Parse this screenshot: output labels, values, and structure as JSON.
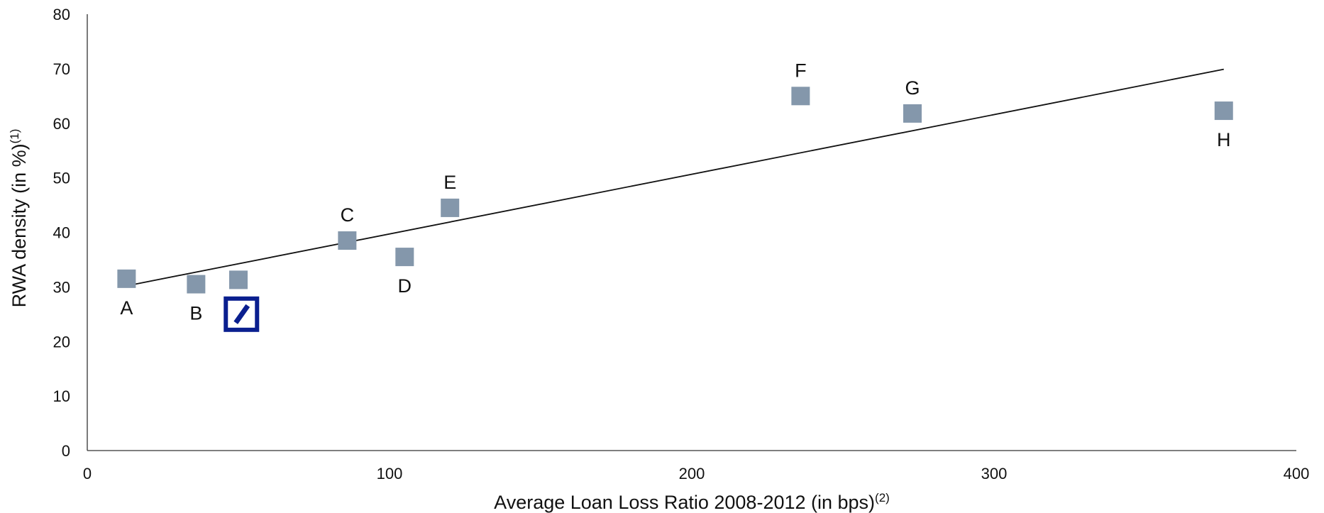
{
  "chart_data": {
    "type": "scatter",
    "title": "",
    "xlabel": "Average Loan Loss Ratio 2008-2012 (in bps)",
    "xlabel_sup": "(2)",
    "ylabel": "RWA density (in %)",
    "ylabel_sup": "(1)",
    "xlim": [
      0,
      400
    ],
    "ylim": [
      0,
      80
    ],
    "xticks": [
      "0",
      "100",
      "200",
      "300",
      "400"
    ],
    "yticks": [
      "0",
      "10",
      "20",
      "30",
      "40",
      "50",
      "60",
      "70",
      "80"
    ],
    "grid": false,
    "series": [
      {
        "points": [
          {
            "label": "A",
            "x": 13,
            "y": 31.5,
            "label_pos": "below"
          },
          {
            "label": "B",
            "x": 36,
            "y": 30.5,
            "label_pos": "below"
          },
          {
            "label": "",
            "x": 50,
            "y": 31.3,
            "label_pos": "none"
          },
          {
            "label": "C",
            "x": 86,
            "y": 38.5,
            "label_pos": "above"
          },
          {
            "label": "D",
            "x": 105,
            "y": 35.5,
            "label_pos": "below"
          },
          {
            "label": "E",
            "x": 120,
            "y": 44.5,
            "label_pos": "above"
          },
          {
            "label": "F",
            "x": 236,
            "y": 65,
            "label_pos": "above"
          },
          {
            "label": "G",
            "x": 273,
            "y": 61.8,
            "label_pos": "above"
          },
          {
            "label": "H",
            "x": 376,
            "y": 62.3,
            "label_pos": "below"
          }
        ],
        "color": "#8497ab"
      }
    ],
    "highlight": {
      "icon": "deutsche-bank-logo-icon",
      "x": 51,
      "y": 25,
      "color": "#0a1f8f"
    },
    "trendline": {
      "x": [
        13,
        376
      ],
      "y": [
        30.2,
        69.9
      ],
      "color": "#111111"
    }
  }
}
